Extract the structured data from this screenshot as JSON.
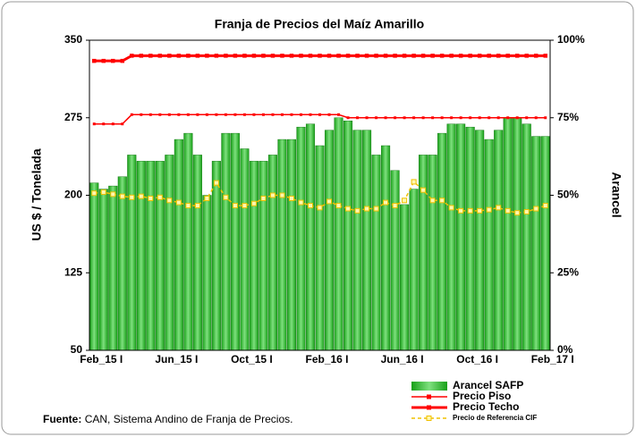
{
  "chart_data": {
    "type": "combo",
    "title": "Franja de Precios del Maíz Amarillo",
    "y_label": "US $ / Tonelada",
    "y2_label": "Arancel",
    "source_label": "Fuente:",
    "source_text": "CAN, Sistema Andino de Franja de Precios.",
    "categories": [
      "Feb_15 I",
      null,
      null,
      null,
      null,
      null,
      null,
      null,
      "Jun_15 I",
      null,
      null,
      null,
      null,
      null,
      null,
      null,
      "Oct_15 I",
      null,
      null,
      null,
      null,
      null,
      null,
      null,
      "Feb_16 I",
      null,
      null,
      null,
      null,
      null,
      null,
      null,
      "Jun_16 I",
      null,
      null,
      null,
      null,
      null,
      null,
      null,
      "Oct_16 I",
      null,
      null,
      null,
      null,
      null,
      null,
      null,
      "Feb_17 I"
    ],
    "ylim": [
      50,
      350
    ],
    "yticks": [
      50,
      125,
      200,
      275,
      350
    ],
    "y2lim": [
      0,
      100
    ],
    "y2ticks": [
      {
        "value": 0,
        "label": "0%"
      },
      {
        "value": 25,
        "label": "25%"
      },
      {
        "value": 50,
        "label": "50%"
      },
      {
        "value": 75,
        "label": "75%"
      },
      {
        "value": 100,
        "label": "100%"
      }
    ],
    "series": [
      {
        "name": "Arancel SAFP",
        "kind": "bar",
        "axis": "y2",
        "color": "#18a018",
        "values": [
          54,
          52,
          53,
          56,
          63,
          61,
          61,
          61,
          63,
          68,
          70,
          63,
          50,
          61,
          70,
          70,
          65,
          61,
          61,
          63,
          68,
          68,
          72,
          73,
          66,
          71,
          75,
          74,
          71,
          71,
          63,
          66,
          58,
          47,
          52,
          63,
          63,
          70,
          73,
          73,
          72,
          71,
          68,
          71,
          75,
          75,
          73,
          69,
          69
        ]
      },
      {
        "name": "Precio Piso",
        "kind": "line",
        "color": "#ff0000",
        "width": 1.5,
        "values": [
          269,
          269,
          269,
          269,
          278,
          278,
          278,
          278,
          278,
          278,
          278,
          278,
          278,
          278,
          278,
          278,
          278,
          278,
          278,
          278,
          278,
          278,
          278,
          278,
          278,
          278,
          278,
          275,
          275,
          275,
          275,
          275,
          275,
          275,
          275,
          275,
          275,
          275,
          275,
          275,
          275,
          275,
          275,
          275,
          275,
          275,
          275,
          275,
          275
        ]
      },
      {
        "name": "Precio Techo",
        "kind": "line",
        "color": "#ff0000",
        "width": 3,
        "values": [
          330,
          330,
          330,
          330,
          335,
          335,
          335,
          335,
          335,
          335,
          335,
          335,
          335,
          335,
          335,
          335,
          335,
          335,
          335,
          335,
          335,
          335,
          335,
          335,
          335,
          335,
          335,
          335,
          335,
          335,
          335,
          335,
          335,
          335,
          335,
          335,
          335,
          335,
          335,
          335,
          335,
          335,
          335,
          335,
          335,
          335,
          335,
          335,
          335
        ]
      },
      {
        "name": "Precio de Referencia CIF",
        "kind": "line",
        "dashed": true,
        "color": "#f0c000",
        "width": 1.5,
        "values": [
          202,
          203,
          201,
          199,
          198,
          199,
          197,
          198,
          195,
          193,
          190,
          190,
          197,
          212,
          198,
          190,
          190,
          192,
          197,
          200,
          200,
          197,
          193,
          190,
          188,
          194,
          190,
          187,
          185,
          187,
          187,
          193,
          190,
          195,
          213,
          205,
          195,
          195,
          188,
          185,
          185,
          185,
          186,
          188,
          185,
          183,
          184,
          187,
          190
        ]
      }
    ]
  }
}
